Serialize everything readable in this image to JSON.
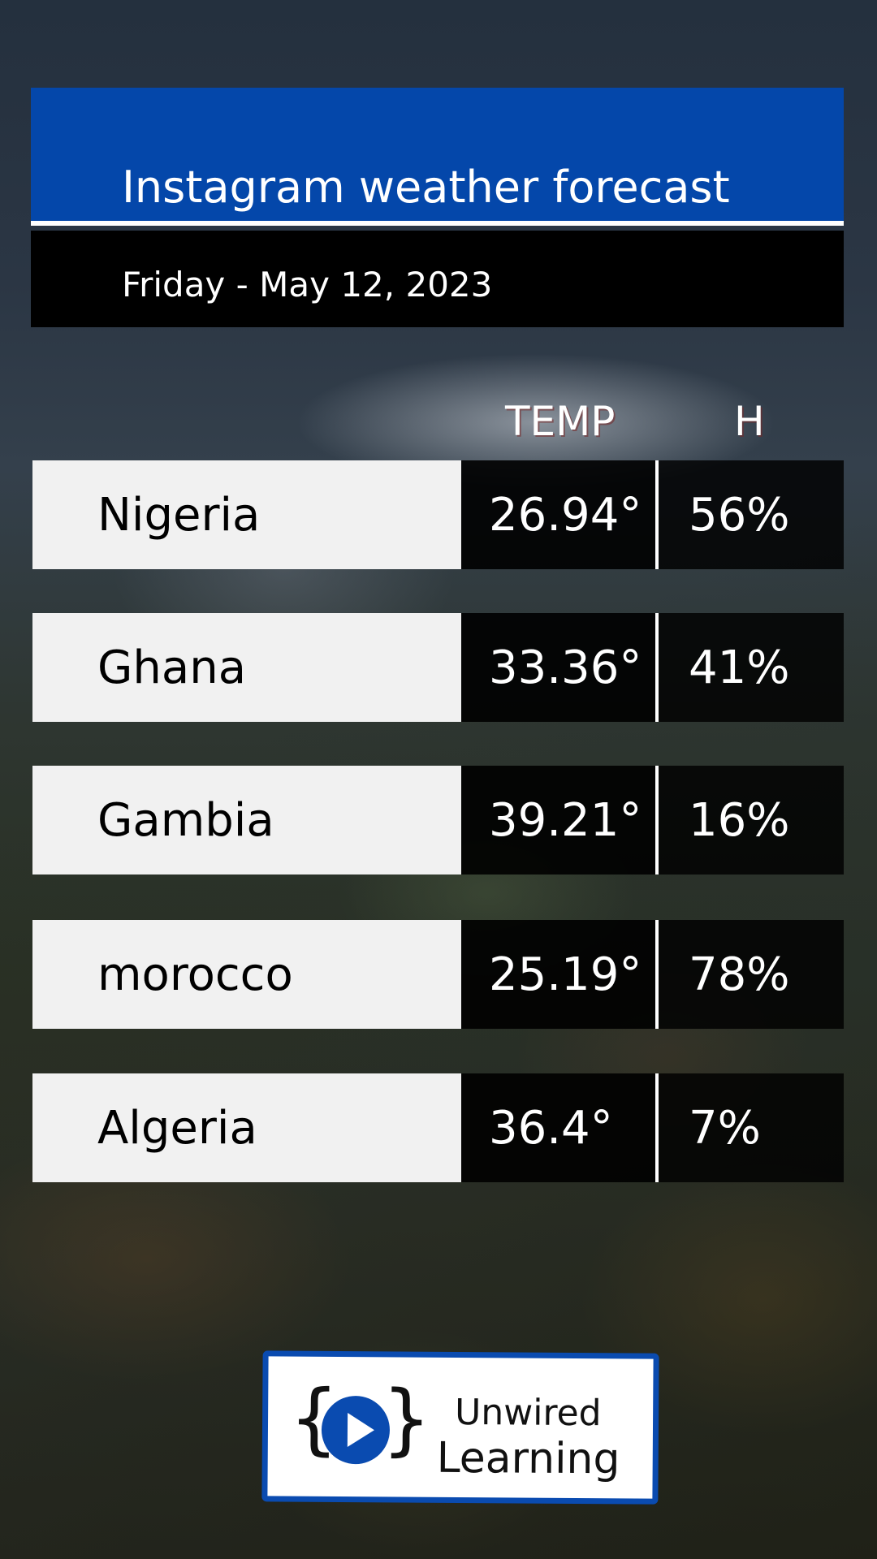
{
  "header": {
    "title": "Instagram weather forecast",
    "date": "Friday - May 12, 2023"
  },
  "columns": {
    "temp": "TEMP",
    "humidity": "H"
  },
  "rows": [
    {
      "country": "Nigeria",
      "temp": "26.94°",
      "humidity": "56%"
    },
    {
      "country": "Ghana",
      "temp": "33.36°",
      "humidity": "41%"
    },
    {
      "country": "Gambia",
      "temp": "39.21°",
      "humidity": "16%"
    },
    {
      "country": "morocco",
      "temp": "25.19°",
      "humidity": "78%"
    },
    {
      "country": "Algeria",
      "temp": "36.4°",
      "humidity": "7%"
    }
  ],
  "logo": {
    "brace_left": "{",
    "brace_right": "}",
    "line1": "Unwired",
    "line2": "Learning",
    "icon": "play-icon"
  },
  "colors": {
    "accent_blue": "#0447aa",
    "header_black": "#000000",
    "row_light": "#f1f1f1"
  }
}
